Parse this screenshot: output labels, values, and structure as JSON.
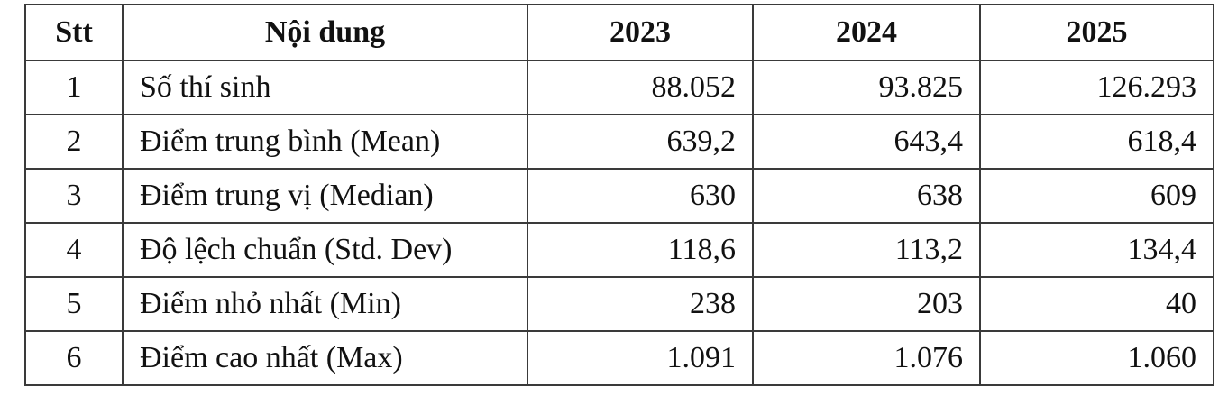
{
  "table": {
    "headers": [
      "Stt",
      "Nội dung",
      "2023",
      "2024",
      "2025"
    ],
    "rows": [
      {
        "stt": "1",
        "label": "Số thí sinh",
        "y2023": "88.052",
        "y2024": "93.825",
        "y2025": "126.293"
      },
      {
        "stt": "2",
        "label": "Điểm trung bình (Mean)",
        "y2023": "639,2",
        "y2024": "643,4",
        "y2025": "618,4"
      },
      {
        "stt": "3",
        "label": "Điểm trung vị (Median)",
        "y2023": "630",
        "y2024": "638",
        "y2025": "609"
      },
      {
        "stt": "4",
        "label": "Độ lệch chuẩn (Std. Dev)",
        "y2023": "118,6",
        "y2024": "113,2",
        "y2025": "134,4"
      },
      {
        "stt": "5",
        "label": "Điểm nhỏ nhất (Min)",
        "y2023": "238",
        "y2024": "203",
        "y2025": "40"
      },
      {
        "stt": "6",
        "label": "Điểm cao nhất (Max)",
        "y2023": "1.091",
        "y2024": "1.076",
        "y2025": "1.060"
      }
    ]
  }
}
